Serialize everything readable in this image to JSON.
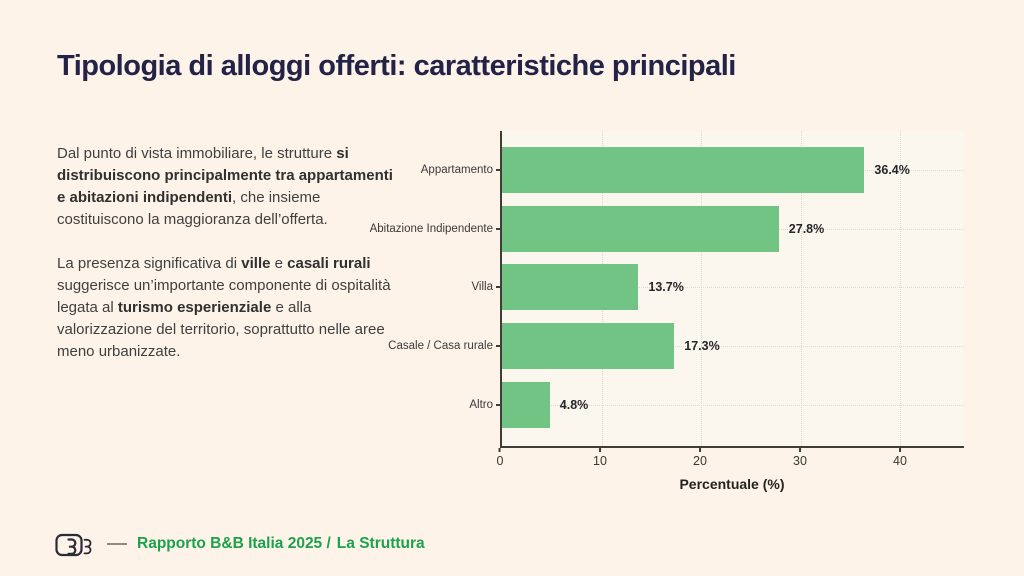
{
  "slide": {
    "title": "Tipologia di alloggi offerti: caratteristiche principali",
    "paragraphs": [
      [
        {
          "t": "Dal punto di vista immobiliare, le strutture "
        },
        {
          "t": "si distribuiscono principalmente tra appartamenti e abitazioni indipendenti",
          "b": true
        },
        {
          "t": ", che insieme costituiscono la maggioranza dell’offerta."
        }
      ],
      [
        {
          "t": "La presenza significativa di "
        },
        {
          "t": "ville",
          "b": true
        },
        {
          "t": " e "
        },
        {
          "t": "casali rurali",
          "b": true
        },
        {
          "t": " suggerisce un’importante componente di ospitalità legata al "
        },
        {
          "t": "turismo esperienziale",
          "b": true
        },
        {
          "t": " e alla valorizzazione del territorio, soprattutto nelle aree meno urbanizzate."
        }
      ]
    ]
  },
  "chart_data": {
    "type": "bar",
    "orientation": "horizontal",
    "categories": [
      "Appartamento",
      "Abitazione Indipendente",
      "Villa",
      "Casale / Casa rurale",
      "Altro"
    ],
    "values": [
      36.4,
      27.8,
      13.7,
      17.3,
      4.8
    ],
    "value_labels": [
      "36.4%",
      "27.8%",
      "13.7%",
      "17.3%",
      "4.8%"
    ],
    "xlabel": "Percentuale (%)",
    "xticks": [
      0,
      10,
      20,
      30,
      40
    ],
    "xlim": [
      0,
      46.4
    ],
    "grid": true,
    "legend": "none",
    "bar_color": "#71c484"
  },
  "footer": {
    "logo": "bb-monogram",
    "text_left": "Rapporto B&B Italia 2025 /",
    "text_right": "La Struttura"
  },
  "colors": {
    "page_bg": "#fdf3e9",
    "plot_bg": "#fbf6ee",
    "title": "#232247",
    "body_text": "#3f3f3f",
    "bar_green": "#71c484",
    "axis": "#3e3e36",
    "footer_green": "#1ba24a"
  }
}
